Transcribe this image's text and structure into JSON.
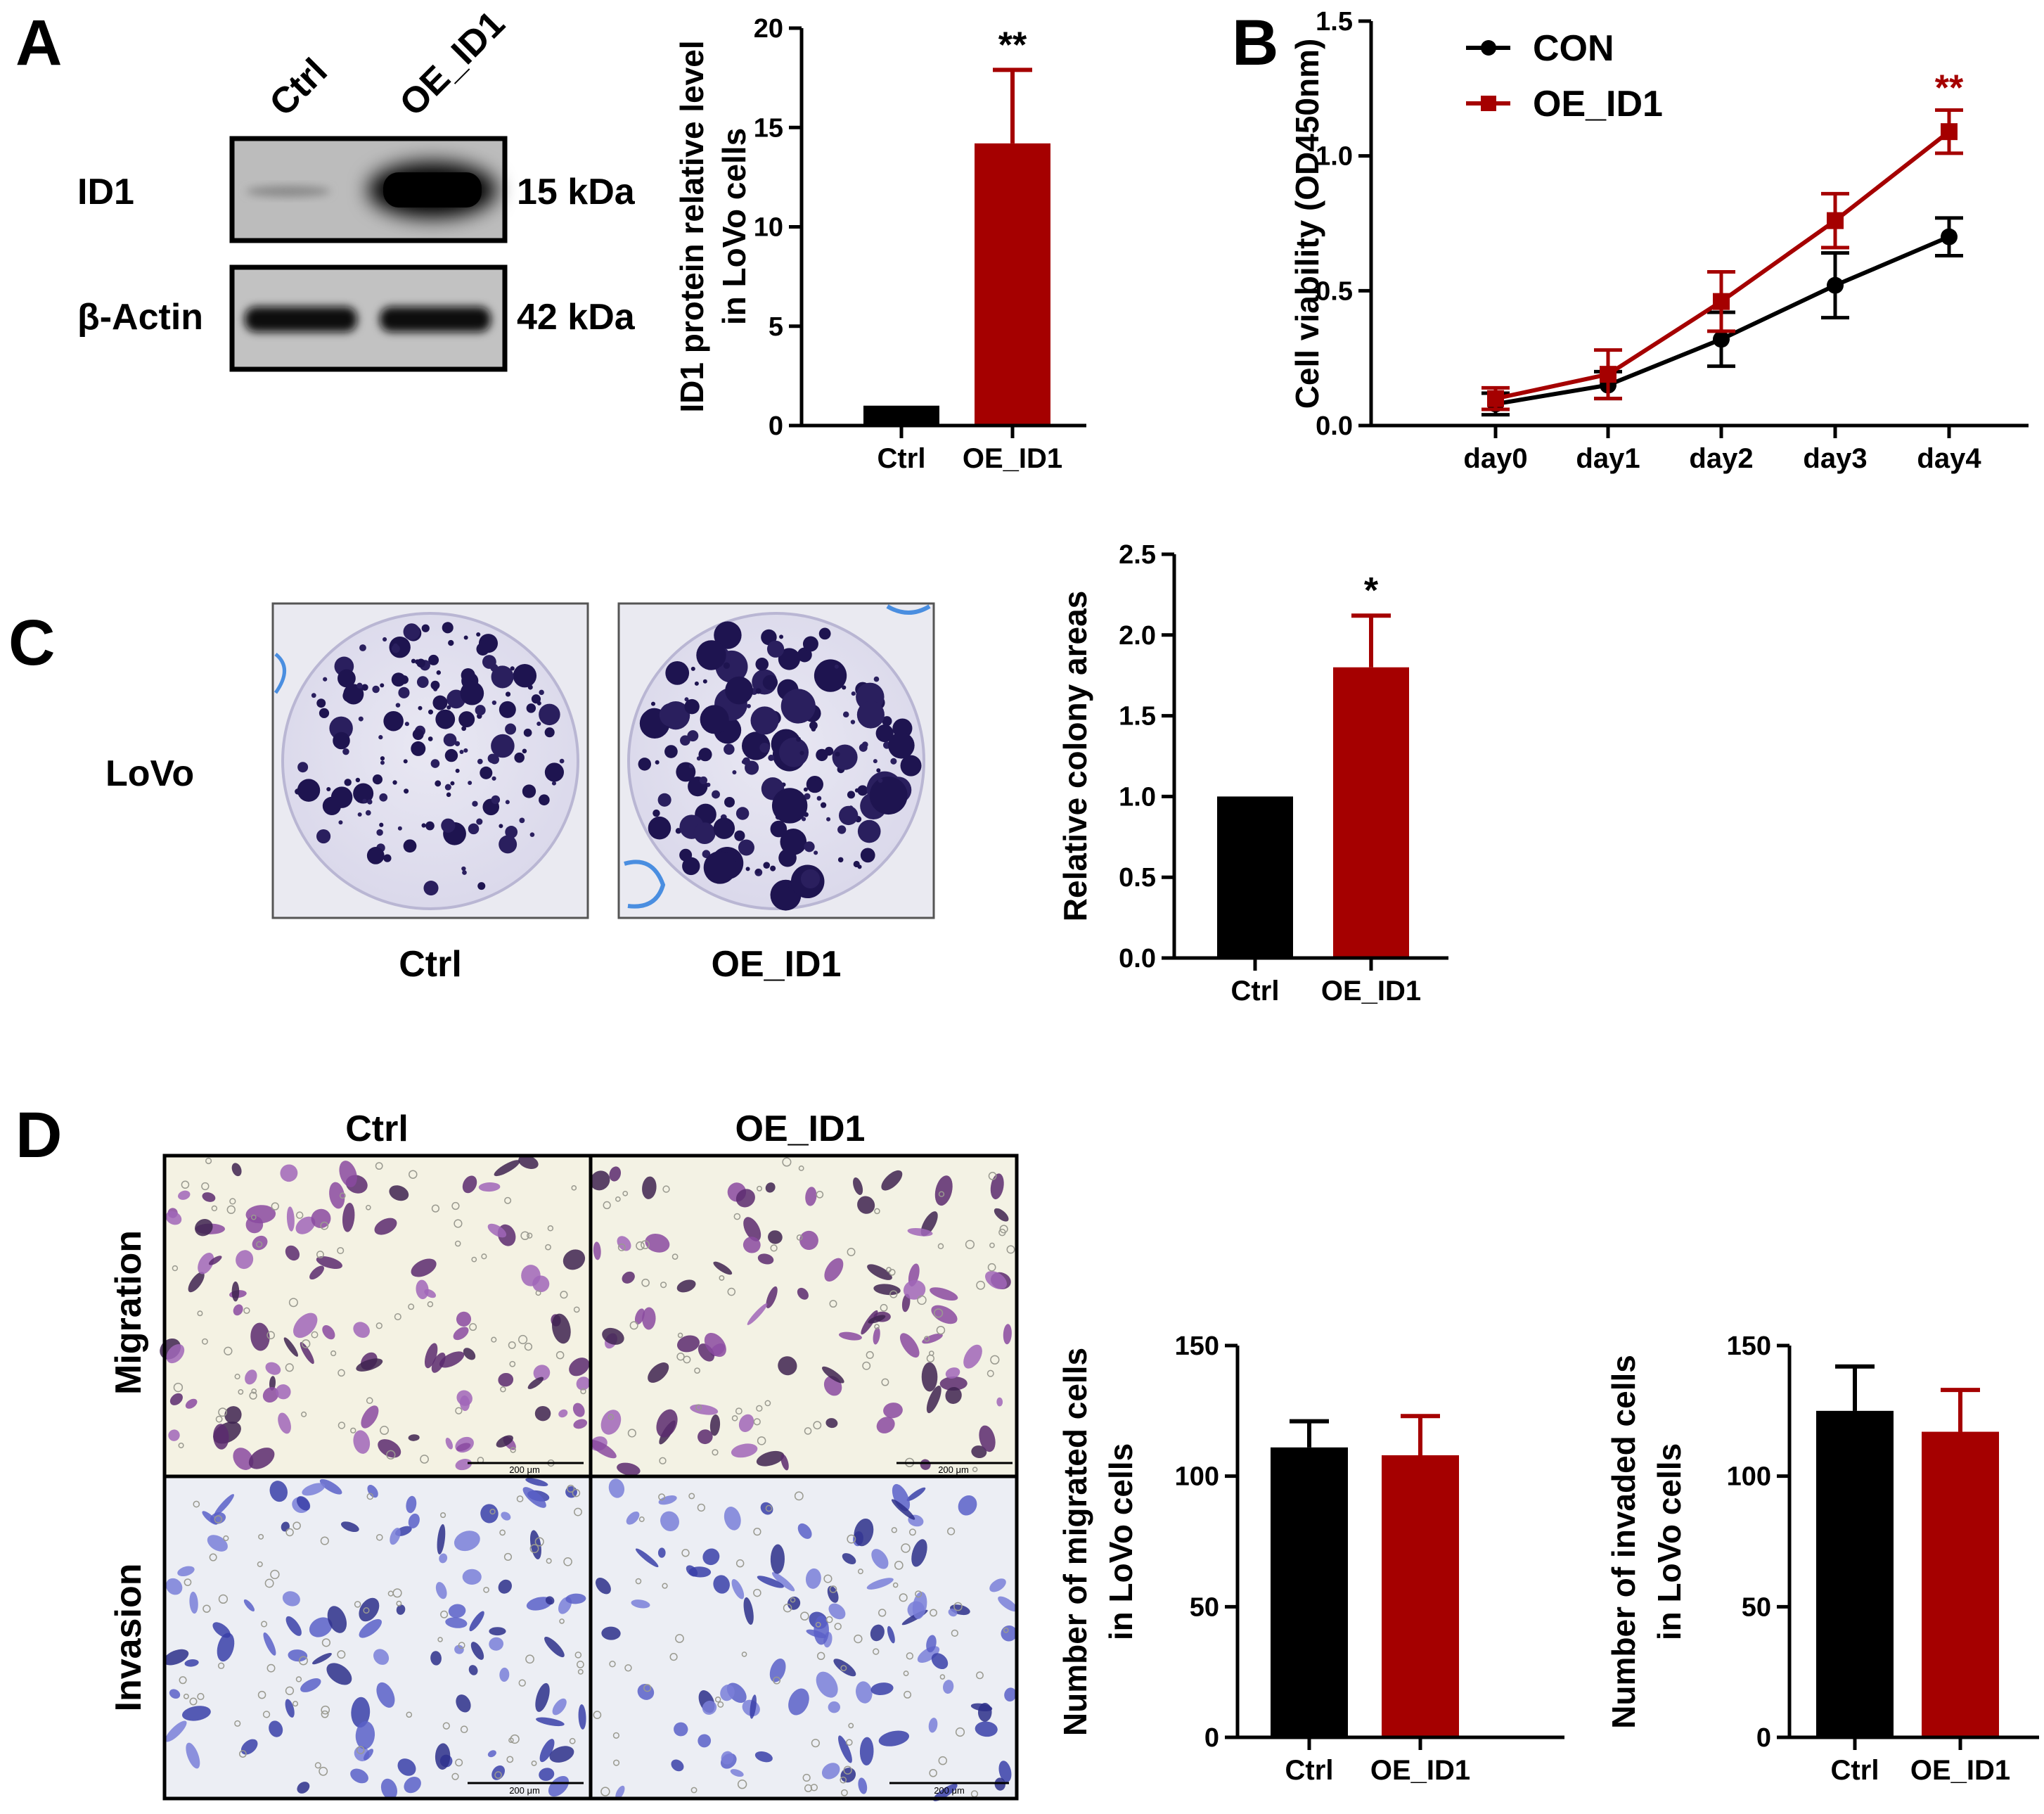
{
  "panels": {
    "a": "A",
    "b": "B",
    "c": "C",
    "d": "D"
  },
  "blot": {
    "lanes": [
      "Ctrl",
      "OE_ID1"
    ],
    "rows": [
      {
        "protein": "ID1",
        "size": "15 kDa"
      },
      {
        "protein": "β-Actin",
        "size": "42 kDa"
      }
    ]
  },
  "colony": {
    "cell_line": "LoVo",
    "labels": [
      "Ctrl",
      "OE_ID1"
    ]
  },
  "transwell": {
    "columns": [
      "Ctrl",
      "OE_ID1"
    ],
    "rows": [
      "Migration",
      "Invasion"
    ],
    "scale_bar": "200 μm"
  },
  "colors": {
    "ctrl": "#000000",
    "oe": "#a50000"
  },
  "chart_data": [
    {
      "id": "id1-protein",
      "type": "bar",
      "categories": [
        "Ctrl",
        "OE_ID1"
      ],
      "values": [
        1.0,
        14.2
      ],
      "errors": [
        0,
        3.7
      ],
      "significance": [
        "",
        "**"
      ],
      "ylabel": [
        "ID1 protein relative level",
        "in LoVo cells"
      ],
      "ylim": [
        0,
        20
      ],
      "yticks": [
        "0",
        "5",
        "10",
        "15",
        "20"
      ]
    },
    {
      "id": "cell-viability",
      "type": "line",
      "categories": [
        "day0",
        "day1",
        "day2",
        "day3",
        "day4"
      ],
      "series": [
        {
          "name": "CON",
          "values": [
            0.08,
            0.15,
            0.32,
            0.52,
            0.7
          ],
          "errors": [
            0.04,
            0.05,
            0.1,
            0.12,
            0.07
          ]
        },
        {
          "name": "OE_ID1",
          "values": [
            0.1,
            0.19,
            0.46,
            0.76,
            1.09
          ],
          "errors": [
            0.04,
            0.09,
            0.11,
            0.1,
            0.08
          ]
        }
      ],
      "significance": {
        "day4": "**"
      },
      "ylabel": [
        "Cell viability (OD450nm)"
      ],
      "ylim": [
        0,
        1.5
      ],
      "yticks": [
        "0.0",
        "0.5",
        "1.0",
        "1.5"
      ],
      "legend": "top-left"
    },
    {
      "id": "colony-area",
      "type": "bar",
      "categories": [
        "Ctrl",
        "OE_ID1"
      ],
      "values": [
        1.0,
        1.8
      ],
      "errors": [
        0,
        0.32
      ],
      "significance": [
        "",
        "*"
      ],
      "ylabel": [
        "Relative colony areas"
      ],
      "ylim": [
        0,
        2.5
      ],
      "yticks": [
        "0.0",
        "0.5",
        "1.0",
        "1.5",
        "2.0",
        "2.5"
      ]
    },
    {
      "id": "migrated-cells",
      "type": "bar",
      "categories": [
        "Ctrl",
        "OE_ID1"
      ],
      "values": [
        111,
        108
      ],
      "errors": [
        10,
        15
      ],
      "significance": [
        "",
        ""
      ],
      "ylabel": [
        "Number of migrated cells",
        "in LoVo cells"
      ],
      "ylim": [
        0,
        150
      ],
      "yticks": [
        "0",
        "50",
        "100",
        "150"
      ]
    },
    {
      "id": "invaded-cells",
      "type": "bar",
      "categories": [
        "Ctrl",
        "OE_ID1"
      ],
      "values": [
        125,
        117
      ],
      "errors": [
        17,
        16
      ],
      "significance": [
        "",
        ""
      ],
      "ylabel": [
        "Number of  invaded cells",
        "in LoVo cells"
      ],
      "ylim": [
        0,
        150
      ],
      "yticks": [
        "0",
        "50",
        "100",
        "150"
      ]
    }
  ]
}
